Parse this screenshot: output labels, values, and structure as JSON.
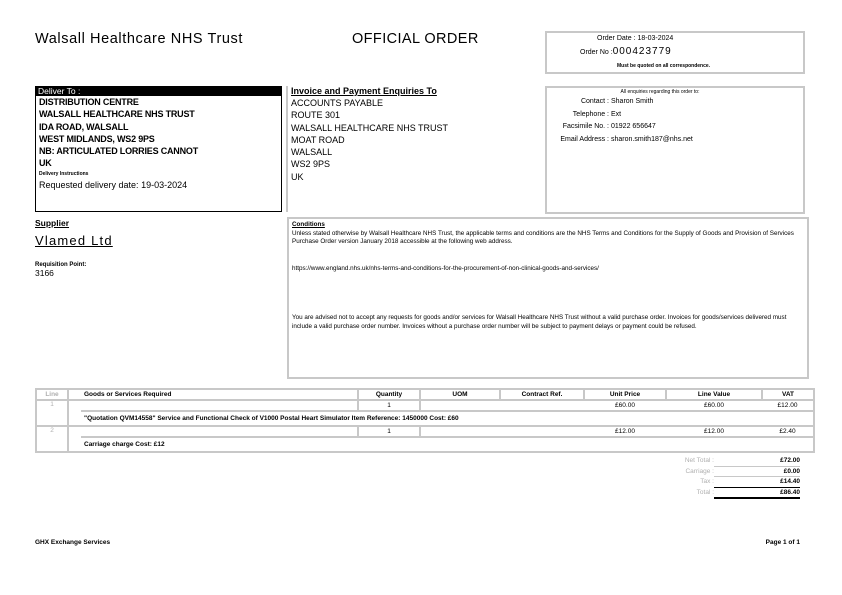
{
  "header": {
    "org": "Walsall Healthcare NHS Trust",
    "title": "OFFICIAL ORDER"
  },
  "order": {
    "date_label": "Order Date :",
    "date": "18-03-2024",
    "no_label": "Order No :",
    "no": "000423779",
    "note": "Must be quoted on all correspondence."
  },
  "deliver": {
    "heading": "Deliver To :",
    "lines": [
      "DISTRIBUTION CENTRE",
      "WALSALL HEALTHCARE NHS TRUST",
      "IDA ROAD, WALSALL",
      "WEST MIDLANDS, WS2 9PS",
      "NB: ARTICULATED LORRIES CANNOT",
      "UK"
    ],
    "instructions_label": "Delivery Instructions",
    "instructions": "Requested delivery date: 19-03-2024"
  },
  "invoice": {
    "heading": "Invoice and Payment Enquiries To",
    "lines": [
      "ACCOUNTS PAYABLE",
      "ROUTE 301",
      "WALSALL HEALTHCARE NHS TRUST",
      "MOAT ROAD",
      "WALSALL",
      "WS2 9PS",
      "UK"
    ]
  },
  "enquiries": {
    "heading": "All enquiries regarding this order to:",
    "contact_label": "Contact :",
    "contact": "Sharon Smith",
    "telephone_label": "Telephone :",
    "telephone": "Ext",
    "fax_label": "Facsimile No. :",
    "fax": "01922 656647",
    "email_label": "Email Address :",
    "email": "sharon.smith187@nhs.net"
  },
  "supplier": {
    "heading": "Supplier",
    "name": "Vlamed Ltd",
    "requisition_label": "Requisition Point:",
    "requisition": "3166"
  },
  "conditions": {
    "heading": "Conditions",
    "p1": "Unless stated otherwise by Walsall Healthcare NHS Trust, the applicable terms and conditions are the NHS Terms and Conditions for the Supply of Goods and Provision of Services Purchase Order version January 2018 accessible at the following web address.",
    "url": "https://www.england.nhs.uk/nhs-terms-and-conditions-for-the-procurement-of-non-clinical-goods-and-services/",
    "p2": "You are advised not to accept any requests for goods and/or services for Walsall Healthcare NHS Trust without a valid purchase order. Invoices for goods/services delivered must include a valid purchase order number. Invoices without a purchase order number will be subject to payment delays or payment could be refused."
  },
  "table": {
    "headers": [
      "Line",
      "Goods or Services Required",
      "Quantity",
      "UOM",
      "Contract Ref.",
      "Unit Price",
      "Line Value",
      "VAT"
    ],
    "rows": [
      {
        "line": "1",
        "quantity": "1",
        "uom": "",
        "contract": "",
        "unit_price": "£60.00",
        "line_value": "£60.00",
        "vat": "£12.00",
        "description": "\"Quotation QVM14558\" Service and Functional Check of V1000 Postal Heart Simulator Item Reference: 1450000 Cost: £60"
      },
      {
        "line": "2",
        "quantity": "1",
        "uom": "",
        "contract": "",
        "unit_price": "£12.00",
        "line_value": "£12.00",
        "vat": "£2.40",
        "description": "Carriage charge Cost: £12"
      }
    ]
  },
  "totals": {
    "net_label": "Net Total :",
    "net": "£72.00",
    "carriage_label": "Carriage :",
    "carriage": "£0.00",
    "tax_label": "Tax :",
    "tax": "£14.40",
    "total_label": "Total :",
    "total": "£86.40"
  },
  "footer": {
    "left": "GHX Exchange Services",
    "right": "Page 1 of 1"
  }
}
